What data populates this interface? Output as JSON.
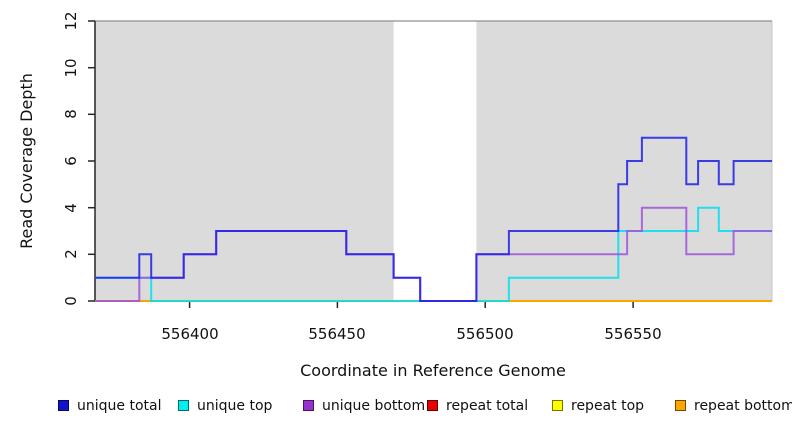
{
  "chart_data": {
    "type": "line",
    "step_style": "post",
    "title": "",
    "xlabel": "Coordinate in Reference Genome",
    "ylabel": "Read Coverage Depth",
    "xlim": [
      556368,
      556597
    ],
    "ylim": [
      0,
      12
    ],
    "x_ticks": [
      "556400",
      "556450",
      "556500",
      "556550"
    ],
    "x_tick_values": [
      556400,
      556450,
      556500,
      556550
    ],
    "y_ticks": [
      "0",
      "2",
      "4",
      "6",
      "8",
      "10",
      "12"
    ],
    "y_tick_values": [
      0,
      2,
      4,
      6,
      8,
      10,
      12
    ],
    "grid": false,
    "legend_position": "bottom",
    "shade_color": "#dbdbdb",
    "shaded_regions": [
      [
        556368,
        556469
      ],
      [
        556497,
        556597
      ]
    ],
    "series": [
      {
        "name": "repeat total",
        "color": "#e81717",
        "steps": [
          [
            556368,
            0
          ]
        ]
      },
      {
        "name": "repeat top",
        "color": "#f0f000",
        "steps": [
          [
            556368,
            0
          ]
        ]
      },
      {
        "name": "repeat bottom",
        "color": "#ff9e00",
        "steps": [
          [
            556368,
            0
          ]
        ]
      },
      {
        "name": "unique top",
        "color": "#00e0ee",
        "steps": [
          [
            556368,
            1
          ],
          [
            556387,
            0
          ],
          [
            556508,
            1
          ],
          [
            556545,
            3
          ],
          [
            556572,
            4
          ],
          [
            556579,
            3
          ]
        ]
      },
      {
        "name": "unique bottom",
        "color": "#9d53de",
        "steps": [
          [
            556368,
            0
          ],
          [
            556383,
            1
          ],
          [
            556398,
            2
          ],
          [
            556409,
            3
          ],
          [
            556453,
            2
          ],
          [
            556469,
            1
          ],
          [
            556478,
            0
          ],
          [
            556497,
            2
          ],
          [
            556548,
            3
          ],
          [
            556553,
            4
          ],
          [
            556568,
            2
          ],
          [
            556584,
            3
          ]
        ]
      },
      {
        "name": "unique total",
        "color": "#1f1fe8",
        "steps": [
          [
            556368,
            1
          ],
          [
            556383,
            2
          ],
          [
            556387,
            1
          ],
          [
            556398,
            2
          ],
          [
            556409,
            3
          ],
          [
            556453,
            2
          ],
          [
            556469,
            1
          ],
          [
            556478,
            0
          ],
          [
            556497,
            2
          ],
          [
            556508,
            3
          ],
          [
            556545,
            5
          ],
          [
            556548,
            6
          ],
          [
            556553,
            7
          ],
          [
            556568,
            5
          ],
          [
            556572,
            6
          ],
          [
            556579,
            5
          ],
          [
            556584,
            6
          ]
        ]
      }
    ],
    "legend": [
      {
        "label": "unique total",
        "color": "#1313cd"
      },
      {
        "label": "unique top",
        "color": "#00eded"
      },
      {
        "label": "unique bottom",
        "color": "#9b30d0"
      },
      {
        "label": "repeat total",
        "color": "#e60000"
      },
      {
        "label": "repeat top",
        "color": "#ffff00"
      },
      {
        "label": "repeat bottom",
        "color": "#ffa500"
      }
    ]
  }
}
